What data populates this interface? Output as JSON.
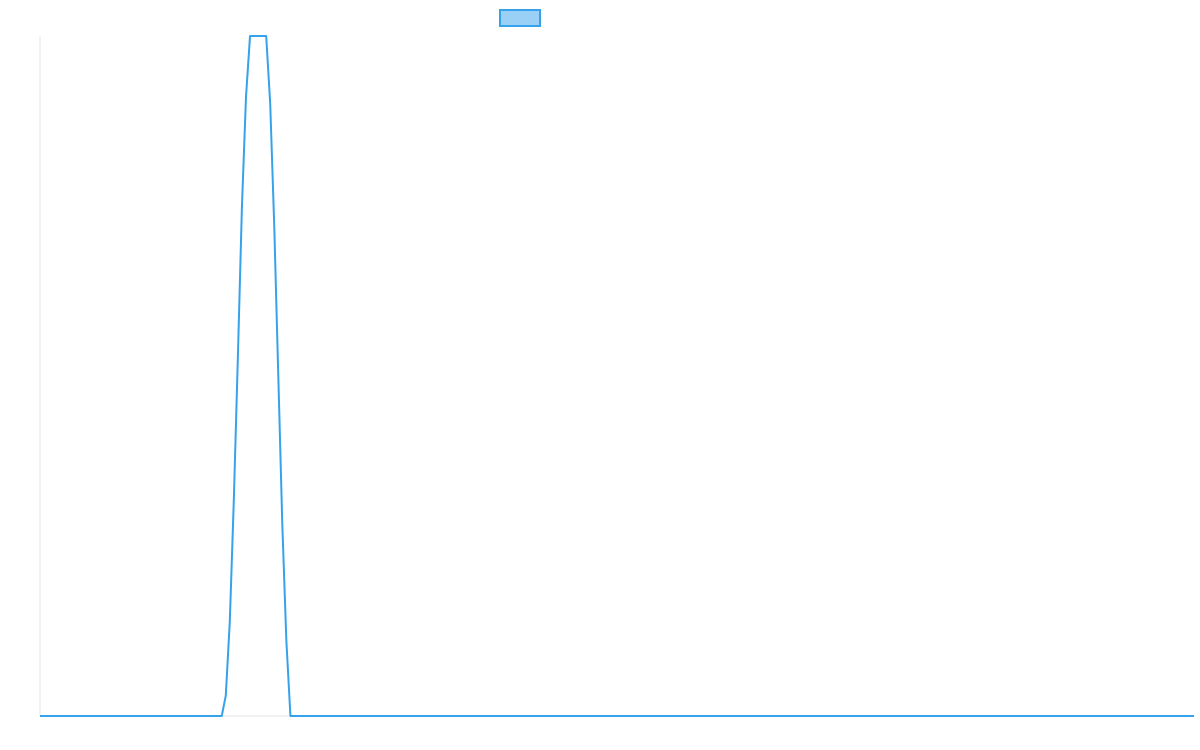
{
  "chart_data": {
    "type": "line",
    "title": "",
    "xlabel": "",
    "ylabel": "",
    "legend": {
      "placement": "top-center",
      "entries": [
        {
          "label": "",
          "color": "#36a2eb",
          "fill": "#9ad0f5"
        }
      ]
    },
    "grid": false,
    "ylim": [
      0,
      100
    ],
    "xlim": [
      0,
      100
    ],
    "series": [
      {
        "color": "#36a2eb",
        "x": [
          0,
          15.75,
          16.1,
          16.45,
          16.8,
          17.15,
          17.5,
          17.85,
          18.2,
          18.55,
          18.9,
          19.25,
          19.6,
          19.95,
          20.3,
          20.65,
          21.0,
          21.35,
          21.7,
          100
        ],
        "values": [
          0,
          0,
          3,
          14,
          32,
          53,
          75,
          91,
          100,
          100,
          100,
          100,
          100,
          90,
          72,
          50,
          28,
          11,
          0,
          0
        ]
      }
    ]
  }
}
